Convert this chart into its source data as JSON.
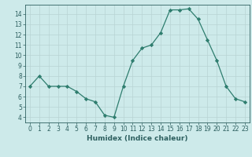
{
  "x": [
    0,
    1,
    2,
    3,
    4,
    5,
    6,
    7,
    8,
    9,
    10,
    11,
    12,
    13,
    14,
    15,
    16,
    17,
    18,
    19,
    20,
    21,
    22,
    23
  ],
  "y": [
    7,
    8,
    7,
    7,
    7,
    6.5,
    5.8,
    5.5,
    4.2,
    4.0,
    7.0,
    9.5,
    10.7,
    11.0,
    12.2,
    14.4,
    14.4,
    14.5,
    13.5,
    11.5,
    9.5,
    7.0,
    5.8,
    5.5
  ],
  "line_color": "#2e7d6e",
  "marker": "D",
  "marker_size": 2.2,
  "bg_color": "#cdeaea",
  "grid_color": "#b8d4d4",
  "xlabel": "Humidex (Indice chaleur)",
  "xlim": [
    -0.5,
    23.5
  ],
  "ylim": [
    3.5,
    14.9
  ],
  "yticks": [
    4,
    5,
    6,
    7,
    8,
    9,
    10,
    11,
    12,
    13,
    14
  ],
  "xticks": [
    0,
    1,
    2,
    3,
    4,
    5,
    6,
    7,
    8,
    9,
    10,
    11,
    12,
    13,
    14,
    15,
    16,
    17,
    18,
    19,
    20,
    21,
    22,
    23
  ],
  "tick_color": "#2e6060",
  "label_fontsize": 6.5,
  "tick_fontsize": 5.5
}
